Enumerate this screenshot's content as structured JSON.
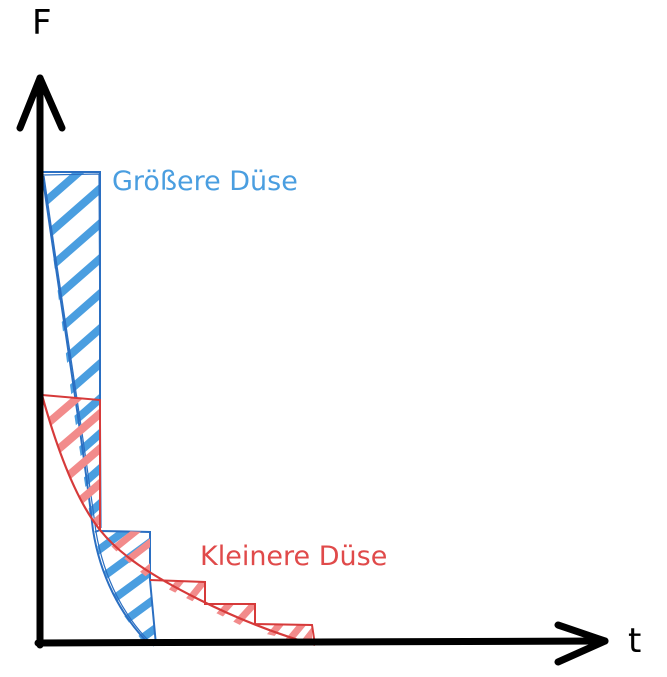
{
  "axes": {
    "y_label": "F",
    "x_label": "t"
  },
  "series": [
    {
      "label": "Größere Düse",
      "color": "#4a9ee0",
      "stroke": "#2b6fc2"
    },
    {
      "label": "Kleinere Düse",
      "color": "#e04a4a",
      "stroke": "#d63a3a"
    }
  ]
}
